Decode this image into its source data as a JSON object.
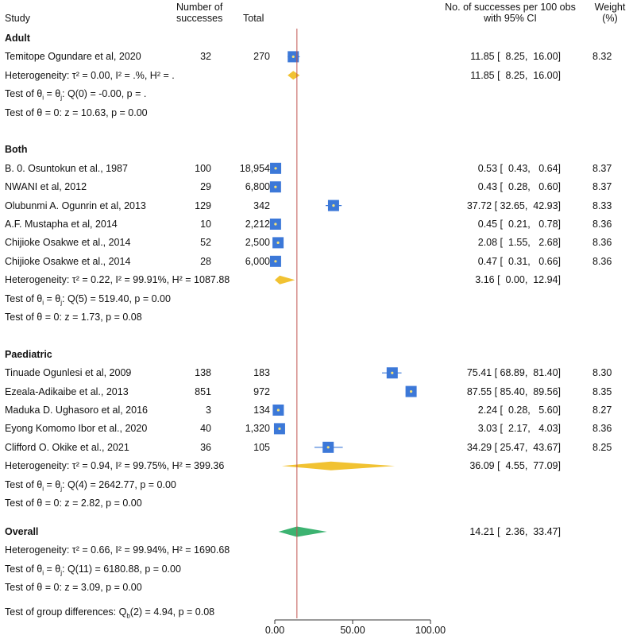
{
  "header": {
    "study": "Study",
    "successes_line1": "Number of",
    "successes_line2": "successes",
    "total": "Total",
    "ci_line1": "No. of successes per 100 obs",
    "ci_line2": "with 95% CI",
    "weight_line1": "Weight",
    "weight_line2": "(%)"
  },
  "chart_data": {
    "type": "forest",
    "xlabel_ticks": [
      "0.00",
      "50.00",
      "100.00"
    ],
    "xlim": [
      0,
      100
    ],
    "overall_line": 14.21,
    "colors": {
      "study_marker": "#3c78d8",
      "group_diamond": "#f1c232",
      "overall_diamond": "#3cb371",
      "ref_line": "#c0504d"
    },
    "groups": [
      {
        "name": "Adult",
        "studies": [
          {
            "label": "Temitope Ogundare et al, 2020",
            "successes": "32",
            "total": "270",
            "est": 11.85,
            "lo": 8.25,
            "hi": 16.0,
            "ci_text": "11.85 [  8.25,  16.00]",
            "weight": "8.32"
          }
        ],
        "pooled": {
          "est": 11.85,
          "lo": 8.25,
          "hi": 16.0,
          "ci_text": "11.85 [  8.25,  16.00]"
        },
        "heterogeneity": "Heterogeneity: τ² = 0.00, I² = .%, H² = .",
        "q_test": "Q(0) = -0.00, p = .",
        "z_test": "Test of θ = 0: z = 10.63, p = 0.00"
      },
      {
        "name": "Both",
        "studies": [
          {
            "label": "B. 0. Osuntokun et al., 1987",
            "successes": "100",
            "total": "18,954",
            "est": 0.53,
            "lo": 0.43,
            "hi": 0.64,
            "ci_text": "0.53 [  0.43,   0.64]",
            "weight": "8.37"
          },
          {
            "label": "NWANI et al, 2012",
            "successes": "29",
            "total": "6,800",
            "est": 0.43,
            "lo": 0.28,
            "hi": 0.6,
            "ci_text": "0.43 [  0.28,   0.60]",
            "weight": "8.37"
          },
          {
            "label": "Olubunmi A. Ogunrin et al, 2013",
            "successes": "129",
            "total": "342",
            "est": 37.72,
            "lo": 32.65,
            "hi": 42.93,
            "ci_text": "37.72 [ 32.65,  42.93]",
            "weight": "8.33"
          },
          {
            "label": "A.F. Mustapha et al, 2014",
            "successes": "10",
            "total": "2,212",
            "est": 0.45,
            "lo": 0.21,
            "hi": 0.78,
            "ci_text": "0.45 [  0.21,   0.78]",
            "weight": "8.36"
          },
          {
            "label": "Chijioke Osakwe et al., 2014",
            "successes": "52",
            "total": "2,500",
            "est": 2.08,
            "lo": 1.55,
            "hi": 2.68,
            "ci_text": "2.08 [  1.55,   2.68]",
            "weight": "8.36"
          },
          {
            "label": "Chijioke Osakwe et al., 2014",
            "successes": "28",
            "total": "6,000",
            "est": 0.47,
            "lo": 0.31,
            "hi": 0.66,
            "ci_text": "0.47 [  0.31,   0.66]",
            "weight": "8.36"
          }
        ],
        "pooled": {
          "est": 3.16,
          "lo": 0.0,
          "hi": 12.94,
          "ci_text": "3.16 [  0.00,  12.94]"
        },
        "heterogeneity": "Heterogeneity: τ² = 0.22, I² = 99.91%, H² = 1087.88",
        "q_test": "Q(5) = 519.40, p = 0.00",
        "z_test": "Test of θ = 0: z = 1.73, p = 0.08"
      },
      {
        "name": "Paediatric",
        "studies": [
          {
            "label": "Tinuade Ogunlesi et al, 2009",
            "successes": "138",
            "total": "183",
            "est": 75.41,
            "lo": 68.89,
            "hi": 81.4,
            "ci_text": "75.41 [ 68.89,  81.40]",
            "weight": "8.30"
          },
          {
            "label": "Ezeala-Adikaibe et al., 2013",
            "successes": "851",
            "total": "972",
            "est": 87.55,
            "lo": 85.4,
            "hi": 89.56,
            "ci_text": "87.55 [ 85.40,  89.56]",
            "weight": "8.35"
          },
          {
            "label": "Maduka D. Ughasoro et al, 2016",
            "successes": "3",
            "total": "134",
            "est": 2.24,
            "lo": 0.28,
            "hi": 5.6,
            "ci_text": "2.24 [  0.28,   5.60]",
            "weight": "8.27"
          },
          {
            "label": "Eyong Komomo Ibor et al., 2020",
            "successes": "40",
            "total": "1,320",
            "est": 3.03,
            "lo": 2.17,
            "hi": 4.03,
            "ci_text": "3.03 [  2.17,   4.03]",
            "weight": "8.36"
          },
          {
            "label": "Clifford O. Okike et al., 2021",
            "successes": "36",
            "total": "105",
            "est": 34.29,
            "lo": 25.47,
            "hi": 43.67,
            "ci_text": "34.29 [ 25.47,  43.67]",
            "weight": "8.25"
          }
        ],
        "pooled": {
          "est": 36.09,
          "lo": 4.55,
          "hi": 77.09,
          "ci_text": "36.09 [  4.55,  77.09]"
        },
        "heterogeneity": "Heterogeneity: τ² = 0.94, I² = 99.75%, H² = 399.36",
        "q_test": "Q(4) = 2642.77, p = 0.00",
        "z_test": "Test of θ = 0: z = 2.82, p = 0.00"
      }
    ],
    "overall": {
      "label": "Overall",
      "est": 14.21,
      "lo": 2.36,
      "hi": 33.47,
      "ci_text": "14.21 [  2.36,  33.47]",
      "heterogeneity": "Heterogeneity: τ² = 0.66, I² = 99.94%, H² = 1690.68",
      "q_test": "Q(11) = 6180.88, p = 0.00",
      "z_test": "Test of θ = 0: z = 3.09, p = 0.00"
    },
    "group_diff": "Q",
    "group_diff_sub": "b",
    "group_diff_rest": "(2) = 4.94, p = 0.08",
    "group_diff_prefix": "Test of group differences: ",
    "q_test_prefix": "Test of θ",
    "q_test_sub1": "i",
    "q_test_mid": " = θ",
    "q_test_sub2": "j",
    "q_test_sep": ": "
  }
}
